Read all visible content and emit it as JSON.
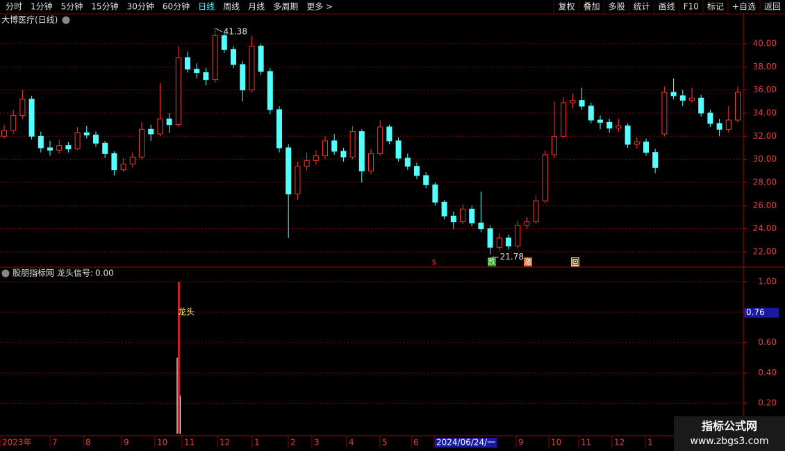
{
  "toolbar": {
    "left": [
      "分时",
      "1分钟",
      "5分钟",
      "15分钟",
      "30分钟",
      "60分钟",
      "日线",
      "周线",
      "月线",
      "多周期",
      "更多 >"
    ],
    "right": [
      "复权",
      "叠加",
      "多股",
      "统计",
      "画线",
      "F10",
      "标记",
      "+自选",
      "返回"
    ],
    "active": 6
  },
  "chart_data": [
    {
      "type": "candlestick",
      "title": "大博医疗(日线)",
      "ylim": [
        20.68,
        41.5
      ],
      "yticks": [
        {
          "value": 22,
          "label": "22.00"
        },
        {
          "value": 24,
          "label": "24.00"
        },
        {
          "value": 26,
          "label": "26.00"
        },
        {
          "value": 28,
          "label": "28.00"
        },
        {
          "value": 30,
          "label": "30.00"
        },
        {
          "value": 32,
          "label": "32.00"
        },
        {
          "value": 34,
          "label": "34.00"
        },
        {
          "value": 36,
          "label": "36.00"
        },
        {
          "value": 38,
          "label": "38.00"
        },
        {
          "value": 40,
          "label": "40.00"
        }
      ],
      "grid": true,
      "up_color": "#ff3232",
      "down_color": "#54ffff",
      "candles": [
        [
          32,
          33,
          31.8,
          32.5
        ],
        [
          32.5,
          34.3,
          32.2,
          33.8
        ],
        [
          33.8,
          36,
          33.5,
          35.2
        ],
        [
          35.2,
          35.5,
          31.7,
          32
        ],
        [
          32,
          32.4,
          30.6,
          31
        ],
        [
          31,
          31.6,
          30.3,
          30.8
        ],
        [
          30.8,
          31.7,
          30.5,
          31.2
        ],
        [
          31.2,
          31.5,
          30.6,
          30.9
        ],
        [
          30.9,
          32.8,
          30.8,
          32.3
        ],
        [
          32.3,
          32.9,
          31.8,
          32.1
        ],
        [
          32.1,
          32.4,
          31.1,
          31.4
        ],
        [
          31.4,
          31.6,
          30.1,
          30.5
        ],
        [
          30.5,
          30.7,
          28.6,
          29.1
        ],
        [
          29.1,
          30.1,
          28.9,
          29.6
        ],
        [
          29.6,
          30.6,
          29.3,
          30.2
        ],
        [
          30.2,
          33.2,
          30,
          32.6
        ],
        [
          32.6,
          33,
          31.6,
          32.2
        ],
        [
          32.2,
          36.6,
          32,
          33.5
        ],
        [
          33.5,
          34,
          32.3,
          33
        ],
        [
          33,
          39.8,
          32.8,
          38.8
        ],
        [
          38.8,
          39.3,
          37.5,
          37.8
        ],
        [
          37.8,
          38.3,
          37,
          37.5
        ],
        [
          37.5,
          37.9,
          36.4,
          36.9
        ],
        [
          36.9,
          41.38,
          36.6,
          40.7
        ],
        [
          40.7,
          41,
          39.2,
          39.5
        ],
        [
          39.5,
          39.8,
          37.9,
          38.2
        ],
        [
          38.2,
          38.5,
          35,
          36
        ],
        [
          36,
          40.7,
          35.8,
          39.8
        ],
        [
          39.8,
          40,
          37.3,
          37.6
        ],
        [
          37.6,
          37.9,
          33.9,
          34.3
        ],
        [
          34.3,
          34.6,
          30.6,
          31
        ],
        [
          31,
          31.3,
          23.2,
          27
        ],
        [
          27,
          29.8,
          26.5,
          29.4
        ],
        [
          29.4,
          30.6,
          29,
          29.9
        ],
        [
          29.9,
          30.8,
          29.5,
          30.3
        ],
        [
          30.3,
          32,
          30,
          31.6
        ],
        [
          31.6,
          32.2,
          30.4,
          30.7
        ],
        [
          30.7,
          31,
          29.8,
          30.2
        ],
        [
          30.2,
          32.9,
          30,
          32.4
        ],
        [
          32.4,
          32.6,
          28,
          29
        ],
        [
          29,
          30.9,
          28.7,
          30.5
        ],
        [
          30.5,
          33.4,
          30.3,
          32.8
        ],
        [
          32.8,
          33,
          31.3,
          31.6
        ],
        [
          31.6,
          31.9,
          29.8,
          30.1
        ],
        [
          30.1,
          30.5,
          29.1,
          29.4
        ],
        [
          29.4,
          29.7,
          28.3,
          28.6
        ],
        [
          28.6,
          28.9,
          27.5,
          27.8
        ],
        [
          27.8,
          28,
          26,
          26.3
        ],
        [
          26.3,
          26.5,
          24.8,
          25.1
        ],
        [
          25.1,
          25.5,
          24,
          24.6
        ],
        [
          24.6,
          26.1,
          24.4,
          25.7
        ],
        [
          25.7,
          26,
          24.2,
          24.5
        ],
        [
          24.5,
          27.2,
          23.7,
          24
        ],
        [
          24,
          24.3,
          21.78,
          22.4
        ],
        [
          22.4,
          23.6,
          22.1,
          23.2
        ],
        [
          23.2,
          23.5,
          22.2,
          22.5
        ],
        [
          22.5,
          24.7,
          22.3,
          24.3
        ],
        [
          24.3,
          25,
          24,
          24.6
        ],
        [
          24.6,
          26.9,
          24.4,
          26.4
        ],
        [
          26.4,
          30.8,
          26.2,
          30.4
        ],
        [
          30.4,
          35,
          30.1,
          32
        ],
        [
          32,
          35.4,
          31.8,
          34.9
        ],
        [
          34.9,
          35.7,
          34.4,
          35.1
        ],
        [
          35.1,
          36.2,
          34.3,
          34.6
        ],
        [
          34.6,
          34.9,
          33.1,
          33.4
        ],
        [
          33.4,
          33.8,
          32.6,
          33.2
        ],
        [
          33.2,
          33.5,
          32.3,
          32.7
        ],
        [
          32.7,
          33.5,
          32.4,
          32.9
        ],
        [
          32.9,
          33.1,
          31,
          31.3
        ],
        [
          31.3,
          31.9,
          30.9,
          31.5
        ],
        [
          31.5,
          31.8,
          30.3,
          30.6
        ],
        [
          30.6,
          30.9,
          28.8,
          29.3
        ],
        [
          32.2,
          36.3,
          32,
          35.8
        ],
        [
          35.8,
          37,
          35.2,
          35.5
        ],
        [
          35.5,
          36,
          34.6,
          35.1
        ],
        [
          35.1,
          36.2,
          34.9,
          35.3
        ],
        [
          35.3,
          35.6,
          33.7,
          34
        ],
        [
          34,
          34.3,
          32.8,
          33.1
        ],
        [
          33.1,
          33.5,
          32,
          32.6
        ],
        [
          32.6,
          34.6,
          32.3,
          33.4
        ],
        [
          33.4,
          36.3,
          33.2,
          35.8
        ]
      ],
      "annotations": {
        "high": 41.38,
        "low": 21.78
      },
      "markers": [
        {
          "label": "$",
          "color": "#ff3030",
          "bg": "#000000"
        },
        {
          "label": "跌",
          "color": "#ffffff",
          "bg": "#1a9a1a"
        },
        {
          "label": "激",
          "color": "#ffffff",
          "bg": "#d06020"
        },
        {
          "label": "回",
          "color": "#000000",
          "bg": "#f0d8a0"
        }
      ]
    },
    {
      "type": "bar",
      "source": "股朋指标网",
      "title": "龙头信号:",
      "current": {
        "value": 0,
        "label": "0.00"
      },
      "ylim": [
        0,
        1.083
      ],
      "yticks": [
        {
          "value": 0.2,
          "label": "0.20"
        },
        {
          "value": 0.4,
          "label": "0.40"
        },
        {
          "value": 0.6,
          "label": "0.60"
        },
        {
          "value": 1,
          "label": "1.00"
        }
      ],
      "grid_values": [
        0.2,
        0.4,
        0.6,
        0.8,
        1
      ],
      "cursor": {
        "value": 0.76,
        "label": "0.76"
      },
      "values": [
        0.5,
        1,
        0.25
      ],
      "colors": [
        "#ffffff",
        "#ff2020",
        "#ffffff"
      ],
      "annotation": "龙头"
    }
  ],
  "x_labels": [
    "2023年",
    "7",
    "8",
    "9",
    "10",
    "11",
    "12",
    "1",
    "2",
    "3",
    "4",
    "5",
    "6",
    "2024/06/24/一",
    "9",
    "10",
    "11",
    "12",
    "1"
  ],
  "cursor_label_index": 13,
  "watermark": {
    "title": "指标公式网",
    "url": "www.zbgs3.com"
  }
}
